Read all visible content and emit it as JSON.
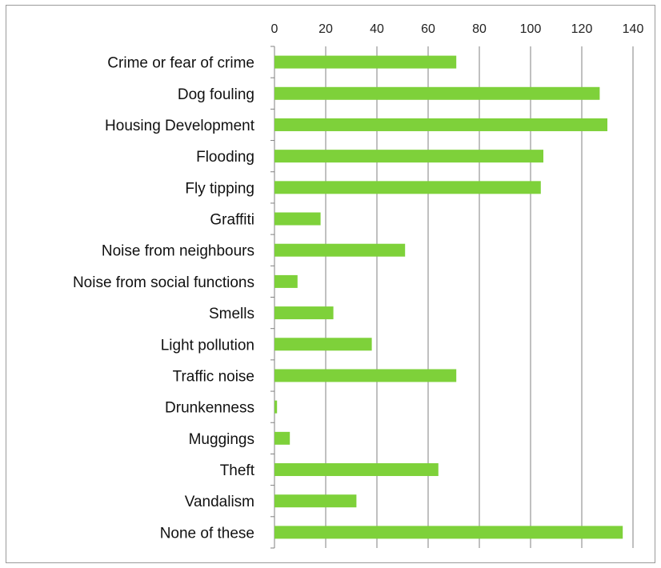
{
  "chart_data": {
    "type": "bar",
    "orientation": "horizontal",
    "categories": [
      "Crime or fear of crime",
      "Dog fouling",
      "Housing Development",
      "Flooding",
      "Fly tipping",
      "Graffiti",
      "Noise from neighbours",
      "Noise from social functions",
      "Smells",
      "Light pollution",
      "Traffic noise",
      "Drunkenness",
      "Muggings",
      "Theft",
      "Vandalism",
      "None of these"
    ],
    "values": [
      71,
      127,
      130,
      105,
      104,
      18,
      51,
      9,
      23,
      38,
      71,
      1,
      6,
      64,
      32,
      136
    ],
    "xlim": [
      0,
      140
    ],
    "xticks": [
      "0",
      "20",
      "40",
      "60",
      "80",
      "100",
      "120",
      "140"
    ],
    "x_axis_position": "top",
    "grid": true,
    "bar_color": "#7ed13a",
    "grid_color": "#808080"
  }
}
